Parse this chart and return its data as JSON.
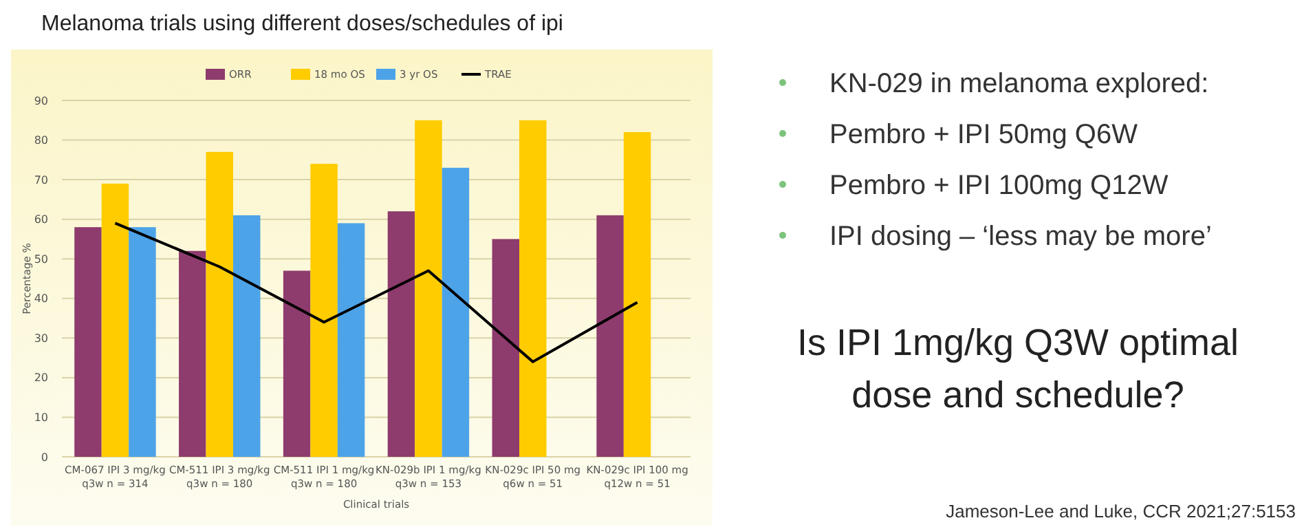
{
  "chart_data": {
    "type": "bar",
    "title": "Melanoma trials using different doses/schedules of ipi",
    "categories": [
      "CM-067 IPI 3 mg/kg q3w n = 314",
      "CM-511 IPI 3 mg/kg q3w n = 180",
      "CM-511 IPI 1 mg/kg q3w n = 180",
      "KN-029b IPI 1 mg/kg q3w n = 153",
      "KN-029c IPI 50 mg q6w n = 51",
      "KN-029c IPI 100 mg q12w n = 51"
    ],
    "series": [
      {
        "name": "ORR",
        "color": "#8e3b6e",
        "values": [
          58,
          52,
          47,
          62,
          55,
          61
        ]
      },
      {
        "name": "18 mo OS",
        "color": "#ffcc00",
        "values": [
          69,
          77,
          74,
          85,
          85,
          82
        ]
      },
      {
        "name": "3 yr OS",
        "color": "#4da3e8",
        "values": [
          58,
          61,
          59,
          73,
          null,
          null
        ]
      },
      {
        "name": "TRAE",
        "type": "line",
        "color": "#000000",
        "values": [
          59,
          48,
          34,
          47,
          24,
          39
        ]
      }
    ],
    "ylim": [
      0,
      90
    ],
    "yticks": [
      0,
      10,
      20,
      30,
      40,
      50,
      60,
      70,
      80,
      90
    ],
    "xlabel": "Clinical trials",
    "ylabel": "Percentage %",
    "grid": "y",
    "legend": "top",
    "annotations": [
      "KN-029 in melanoma explored:",
      "Pembro + IPI 50mg Q6W",
      "Pembro + IPI 100mg Q12W",
      "IPI dosing – ‘less may be more’",
      "Is IPI 1mg/kg Q3W optimal dose and schedule?",
      "Jameson-Lee and Luke, CCR 2021;27:5153"
    ]
  }
}
